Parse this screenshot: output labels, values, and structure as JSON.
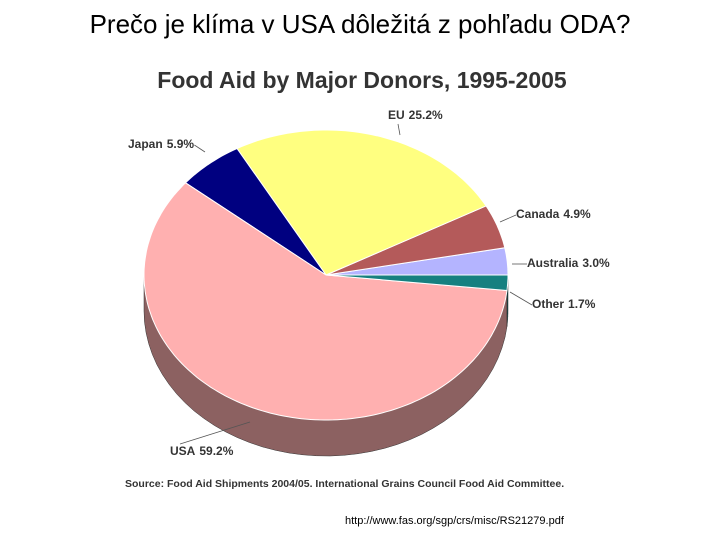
{
  "title": "Prečo je klíma v USA dôležitá z pohľadu ODA?",
  "url": "http://www.fas.org/sgp/crs/misc/RS21279.pdf",
  "chart_data": {
    "type": "pie",
    "title": "Food Aid by Major Donors, 1995-2005",
    "source": "Source: Food Aid Shipments 2004/05. International Grains Council Food Aid Committee.",
    "categories": [
      "Australia",
      "Canada",
      "EU",
      "Japan",
      "USA",
      "Other"
    ],
    "values": [
      3.0,
      4.9,
      25.2,
      5.9,
      59.2,
      1.7
    ],
    "value_labels": [
      "3.0%",
      "4.9%",
      "25.2%",
      "5.9%",
      "59.2%",
      "1.7%"
    ],
    "colors": [
      "#b4b4ff",
      "#b45a5a",
      "#ffff80",
      "#000080",
      "#ffb0b0",
      "#168080"
    ]
  }
}
